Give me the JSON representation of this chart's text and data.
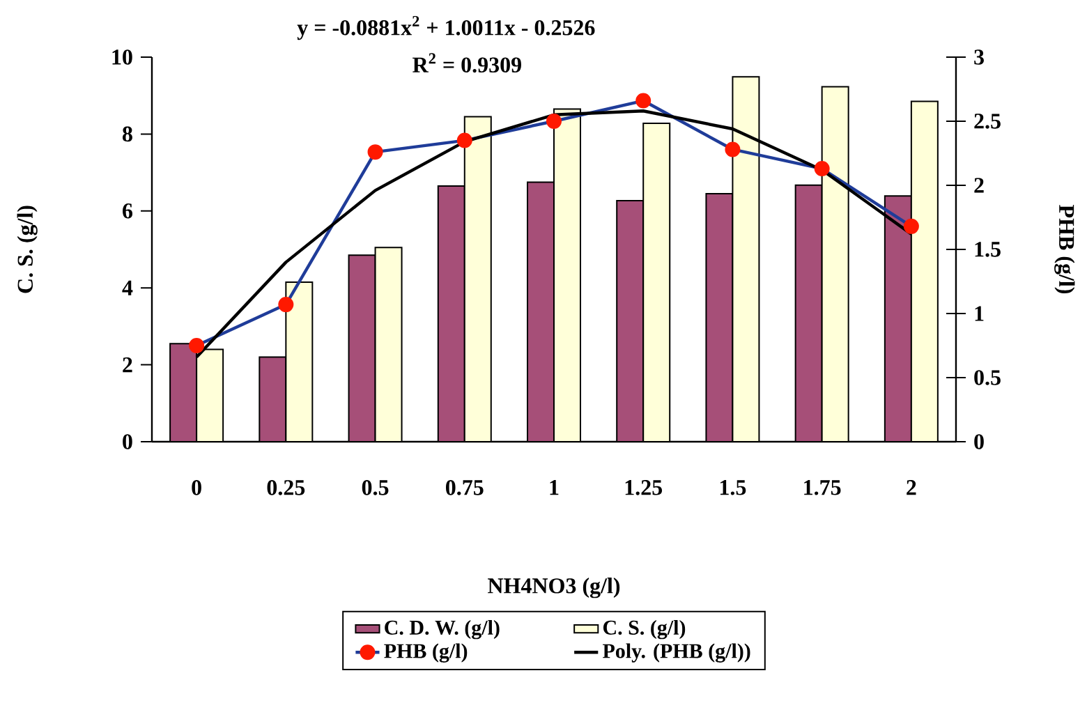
{
  "chart_data": {
    "type": "bar",
    "categories": [
      "0",
      "0.25",
      "0.5",
      "0.75",
      "1",
      "1.25",
      "1.5",
      "1.75",
      "2"
    ],
    "xlabel": "NH4NO3 (g/l)",
    "ylabel": "C. S. (g/l)",
    "y2label": "PHB (g/l)",
    "annotations": [
      "y = -0.0881x$^{2}$ + 1.0011x - 0.2526",
      "R$^{2}$ = 0.9309"
    ],
    "series": [
      {
        "name": "C. D. W. (g/l)",
        "color": "#a64f78",
        "values": [
          2.55,
          2.2,
          4.85,
          6.65,
          6.75,
          6.27,
          6.45,
          6.67,
          6.39
        ]
      },
      {
        "name": "C. S. (g/l)",
        "color": "#ffffd9",
        "values": [
          2.4,
          4.15,
          5.05,
          8.45,
          8.65,
          8.28,
          9.49,
          9.23,
          8.85
        ]
      },
      {
        "name": "PHB (g/l)",
        "type": "line",
        "axis": "y2",
        "color": "#1f3c99",
        "marker": "circle",
        "line_style": "solid",
        "values": [
          0.75,
          1.07,
          2.26,
          2.35,
          2.5,
          2.66,
          2.28,
          2.13,
          1.68
        ]
      },
      {
        "name": "Poly. (PHB (g/l))",
        "type": "line",
        "axis": "y2",
        "color": "#000000",
        "marker": "none",
        "line_style": "solid",
        "values": [
          0.66,
          1.4,
          1.96,
          2.34,
          2.55,
          2.58,
          2.44,
          2.12,
          1.62
        ]
      }
    ],
    "ylim": [
      0,
      10
    ],
    "yticks": [
      0,
      2,
      4,
      6,
      8,
      10
    ],
    "y2lim": [
      0,
      3
    ],
    "y2ticks": [
      0,
      0.5,
      1,
      1.5,
      2,
      2.5,
      3
    ],
    "legend": "bottom",
    "grid": false
  }
}
